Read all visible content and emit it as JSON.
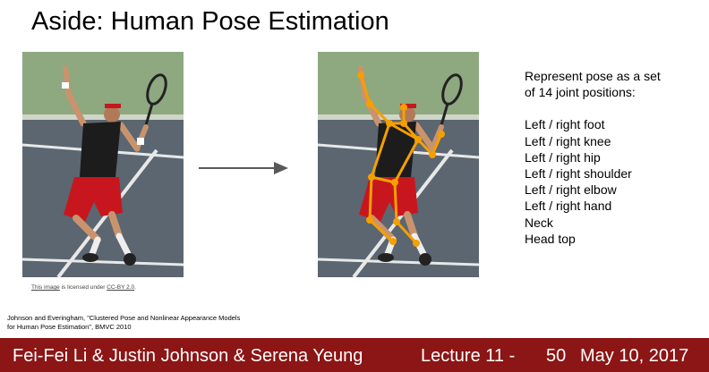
{
  "slide": {
    "title": "Aside: Human Pose Estimation"
  },
  "description": {
    "intro": "Represent pose as a set of 14 joint positions:",
    "joints": [
      "Left / right foot",
      "Left / right knee",
      "Left / right hip",
      "Left / right shoulder",
      "Left / right elbow",
      "Left / right hand",
      "Neck",
      "Head top"
    ]
  },
  "image_credit": {
    "link_text": "This image",
    "middle_text": " is licensed under ",
    "license_text": "CC-BY 2.0",
    "end_text": "."
  },
  "citation": {
    "line1": "Johnson and Everingham, \"Clustered Pose and Nonlinear Appearance Models",
    "line2": "for Human Pose Estimation\", BMVC 2010"
  },
  "footer": {
    "authors": "Fei-Fei Li & Justin Johnson & Serena Yeung",
    "lecture": "Lecture 11 -",
    "page": "50",
    "date": "May 10, 2017"
  },
  "colors": {
    "footer_bg": "#8c1515",
    "skeleton": "#f5a000",
    "court": "#5b6670",
    "backdrop": "#8ea880",
    "shirt": "#1c1c1c",
    "shorts": "#c8161e"
  }
}
